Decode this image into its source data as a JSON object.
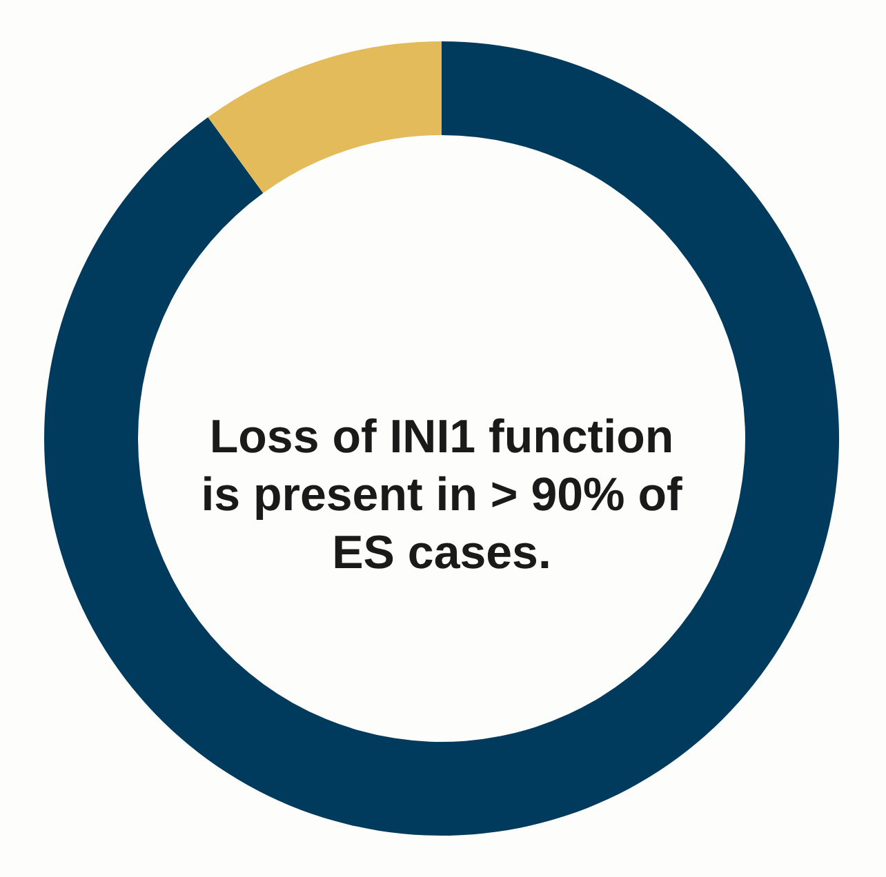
{
  "chart_data": {
    "type": "donut",
    "categories": [
      null,
      null
    ],
    "values": [
      90,
      10
    ],
    "colors": [
      "#003a5d",
      "#e3bb5a"
    ],
    "annotations": [
      "Loss of INI1 function is present in > 90% of ES cases."
    ]
  }
}
